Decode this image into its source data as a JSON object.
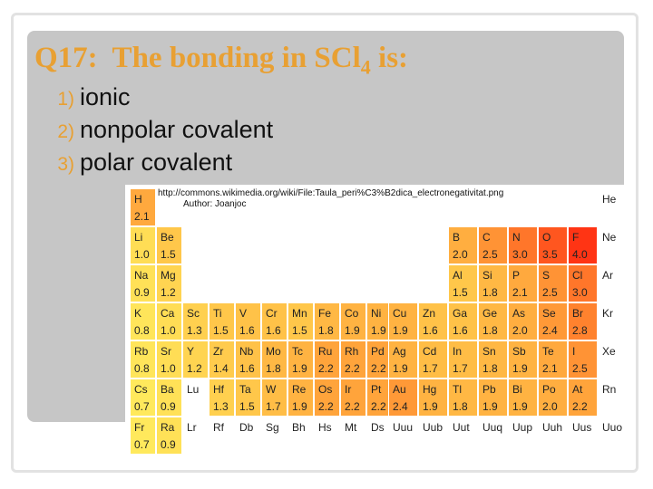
{
  "slide": {
    "title": {
      "text": "Q17:  The bonding in SCl",
      "subscript": "4",
      "tail": " is:"
    },
    "options": [
      {
        "number": "1)",
        "text": "ionic"
      },
      {
        "number": "2)",
        "text": "nonpolar covalent"
      },
      {
        "number": "3)",
        "text": "polar covalent"
      }
    ],
    "image": {
      "source": "http://commons.wikimedia.org/wiki/File:Taula_peri%C3%B2dica_electronegativitat.png",
      "author": "Author:  Joanjoc",
      "table": {
        "rows": [
          [
            {
              "symbol": "H",
              "value": "2.1"
            },
            null,
            null,
            null,
            null,
            null,
            null,
            null,
            null,
            null,
            null,
            null,
            null,
            null,
            null,
            null,
            null,
            {
              "symbol": "He"
            }
          ],
          [
            {
              "symbol": "Li",
              "value": "1.0"
            },
            {
              "symbol": "Be",
              "value": "1.5"
            },
            null,
            null,
            null,
            null,
            null,
            null,
            null,
            null,
            null,
            null,
            {
              "symbol": "B",
              "value": "2.0"
            },
            {
              "symbol": "C",
              "value": "2.5"
            },
            {
              "symbol": "N",
              "value": "3.0"
            },
            {
              "symbol": "O",
              "value": "3.5"
            },
            {
              "symbol": "F",
              "value": "4.0"
            },
            {
              "symbol": "Ne"
            }
          ],
          [
            {
              "symbol": "Na",
              "value": "0.9"
            },
            {
              "symbol": "Mg",
              "value": "1.2"
            },
            null,
            null,
            null,
            null,
            null,
            null,
            null,
            null,
            null,
            null,
            {
              "symbol": "Al",
              "value": "1.5"
            },
            {
              "symbol": "Si",
              "value": "1.8"
            },
            {
              "symbol": "P",
              "value": "2.1"
            },
            {
              "symbol": "S",
              "value": "2.5"
            },
            {
              "symbol": "Cl",
              "value": "3.0"
            },
            {
              "symbol": "Ar"
            }
          ],
          [
            {
              "symbol": "K",
              "value": "0.8"
            },
            {
              "symbol": "Ca",
              "value": "1.0"
            },
            {
              "symbol": "Sc",
              "value": "1.3"
            },
            {
              "symbol": "Ti",
              "value": "1.5"
            },
            {
              "symbol": "V",
              "value": "1.6"
            },
            {
              "symbol": "Cr",
              "value": "1.6"
            },
            {
              "symbol": "Mn",
              "value": "1.5"
            },
            {
              "symbol": "Fe",
              "value": "1.8"
            },
            {
              "symbol": "Co",
              "value": "1.9"
            },
            {
              "symbol": "Ni",
              "value": "1.9"
            },
            {
              "symbol": "Cu",
              "value": "1.9"
            },
            {
              "symbol": "Zn",
              "value": "1.6"
            },
            {
              "symbol": "Ga",
              "value": "1.6"
            },
            {
              "symbol": "Ge",
              "value": "1.8"
            },
            {
              "symbol": "As",
              "value": "2.0"
            },
            {
              "symbol": "Se",
              "value": "2.4"
            },
            {
              "symbol": "Br",
              "value": "2.8"
            },
            {
              "symbol": "Kr"
            }
          ],
          [
            {
              "symbol": "Rb",
              "value": "0.8"
            },
            {
              "symbol": "Sr",
              "value": "1.0"
            },
            {
              "symbol": "Y",
              "value": "1.2"
            },
            {
              "symbol": "Zr",
              "value": "1.4"
            },
            {
              "symbol": "Nb",
              "value": "1.6"
            },
            {
              "symbol": "Mo",
              "value": "1.8"
            },
            {
              "symbol": "Tc",
              "value": "1.9"
            },
            {
              "symbol": "Ru",
              "value": "2.2"
            },
            {
              "symbol": "Rh",
              "value": "2.2"
            },
            {
              "symbol": "Pd",
              "value": "2.2"
            },
            {
              "symbol": "Ag",
              "value": "1.9"
            },
            {
              "symbol": "Cd",
              "value": "1.7"
            },
            {
              "symbol": "In",
              "value": "1.7"
            },
            {
              "symbol": "Sn",
              "value": "1.8"
            },
            {
              "symbol": "Sb",
              "value": "1.9"
            },
            {
              "symbol": "Te",
              "value": "2.1"
            },
            {
              "symbol": "I",
              "value": "2.5"
            },
            {
              "symbol": "Xe"
            }
          ],
          [
            {
              "symbol": "Cs",
              "value": "0.7"
            },
            {
              "symbol": "Ba",
              "value": "0.9"
            },
            {
              "symbol": "Lu"
            },
            {
              "symbol": "Hf",
              "value": "1.3"
            },
            {
              "symbol": "Ta",
              "value": "1.5"
            },
            {
              "symbol": "W",
              "value": "1.7"
            },
            {
              "symbol": "Re",
              "value": "1.9"
            },
            {
              "symbol": "Os",
              "value": "2.2"
            },
            {
              "symbol": "Ir",
              "value": "2.2"
            },
            {
              "symbol": "Pt",
              "value": "2.2"
            },
            {
              "symbol": "Au",
              "value": "2.4"
            },
            {
              "symbol": "Hg",
              "value": "1.9"
            },
            {
              "symbol": "Tl",
              "value": "1.8"
            },
            {
              "symbol": "Pb",
              "value": "1.9"
            },
            {
              "symbol": "Bi",
              "value": "1.9"
            },
            {
              "symbol": "Po",
              "value": "2.0"
            },
            {
              "symbol": "At",
              "value": "2.2"
            },
            {
              "symbol": "Rn"
            }
          ],
          [
            {
              "symbol": "Fr",
              "value": "0.7"
            },
            {
              "symbol": "Ra",
              "value": "0.9"
            },
            {
              "symbol": "Lr"
            },
            {
              "symbol": "Rf"
            },
            {
              "symbol": "Db"
            },
            {
              "symbol": "Sg"
            },
            {
              "symbol": "Bh"
            },
            {
              "symbol": "Hs"
            },
            {
              "symbol": "Mt"
            },
            {
              "symbol": "Ds"
            },
            {
              "symbol": "Uuu"
            },
            {
              "symbol": "Uub"
            },
            {
              "symbol": "Uut"
            },
            {
              "symbol": "Uuq"
            },
            {
              "symbol": "Uup"
            },
            {
              "symbol": "Uuh"
            },
            {
              "symbol": "Uus"
            },
            {
              "symbol": "Uuo"
            }
          ]
        ]
      }
    }
  }
}
